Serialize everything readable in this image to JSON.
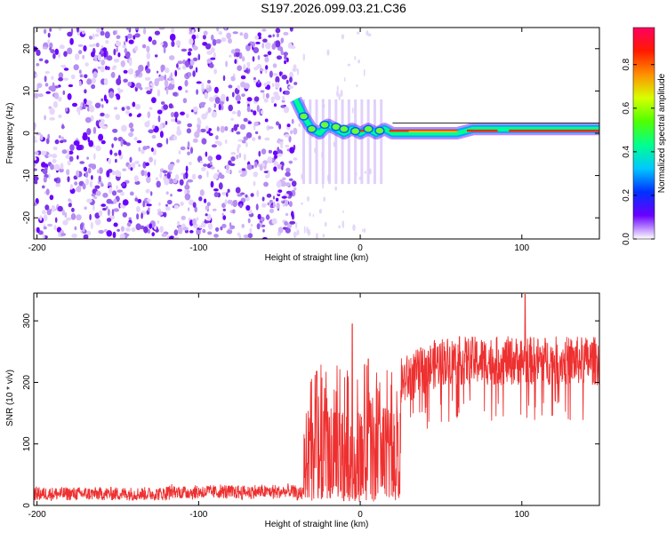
{
  "title": "S197.2026.099.03.21.C36",
  "chart_data": [
    {
      "type": "heatmap",
      "name": "spectrogram",
      "xlabel": "Height of straight line (km)",
      "ylabel": "Frequency (Hz)",
      "xlim": [
        -202,
        148
      ],
      "ylim": [
        -25,
        25
      ],
      "xticks": [
        -200,
        -100,
        0,
        100
      ],
      "yticks": [
        20,
        10,
        0,
        -10,
        -20
      ],
      "noise_region_x": [
        -202,
        -40
      ],
      "signal_trace": {
        "x": [
          -40,
          -35,
          -30,
          -25,
          -20,
          -15,
          -10,
          -5,
          0,
          5,
          10,
          15,
          20,
          30,
          40,
          50,
          60,
          70,
          80,
          90,
          100,
          110,
          120,
          130,
          140,
          148
        ],
        "freq_hz": [
          8,
          4,
          1,
          0,
          2,
          1,
          0,
          1,
          0,
          1,
          0,
          1,
          0,
          0,
          0,
          0,
          0,
          1,
          1,
          1,
          1,
          1,
          1,
          1,
          1,
          1
        ]
      },
      "colorbar": {
        "label": "Normalized spectral amplitude",
        "ticks": [
          "0.0",
          "0.2",
          "0.4",
          "0.6",
          "0.8"
        ],
        "range": [
          0,
          0.97
        ],
        "colors": [
          "#ffffff",
          "#6a00ff",
          "#0030ff",
          "#00c8ff",
          "#00ff90",
          "#50ff00",
          "#d8ff00",
          "#ff9000",
          "#ff1a00",
          "#ff0060"
        ]
      }
    },
    {
      "type": "line",
      "name": "snr",
      "xlabel": "Height of straight line (km)",
      "ylabel": "SNR (10 * v/v)",
      "xlim": [
        -202,
        148
      ],
      "ylim": [
        0,
        345
      ],
      "xticks": [
        -200,
        -100,
        0,
        100
      ],
      "yticks": [
        0,
        100,
        200,
        300
      ],
      "color": "#ee3030",
      "segments": [
        {
          "x_range": [
            -202,
            -35
          ],
          "baseline": 15,
          "spread": 20
        },
        {
          "x_range": [
            -35,
            25
          ],
          "baseline": 60,
          "spread": 230
        },
        {
          "x_range": [
            25,
            148
          ],
          "baseline": 225,
          "spread": 80
        }
      ],
      "peaks": [
        {
          "x": -27,
          "value": 218
        },
        {
          "x": -22,
          "value": 190
        },
        {
          "x": -5,
          "value": 295
        },
        {
          "x": 5,
          "value": 238
        },
        {
          "x": 102,
          "value": 343
        }
      ]
    }
  ]
}
